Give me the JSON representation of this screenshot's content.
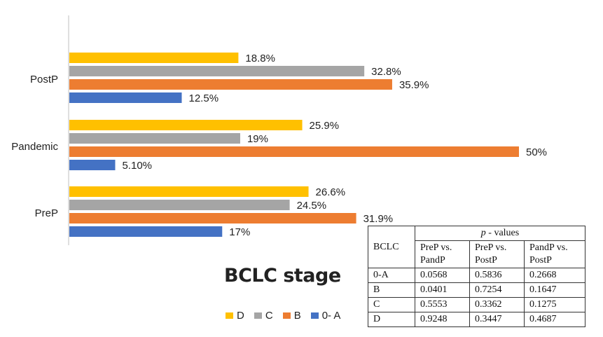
{
  "chart_data": {
    "type": "bar",
    "orientation": "horizontal",
    "title": "BCLC stage",
    "categories": [
      "PostP",
      "Pandemic",
      "PreP"
    ],
    "series": [
      {
        "name": "D",
        "color": "#FFC000",
        "values": [
          18.8,
          25.9,
          26.6
        ],
        "labels": [
          "18.8%",
          "25.9%",
          "26.6%"
        ]
      },
      {
        "name": "C",
        "color": "#A5A5A5",
        "values": [
          32.8,
          19,
          24.5
        ],
        "labels": [
          "32.8%",
          "19%",
          "24.5%"
        ]
      },
      {
        "name": "B",
        "color": "#ED7D31",
        "values": [
          35.9,
          50,
          31.9
        ],
        "labels": [
          "35.9%",
          "50%",
          "31.9%"
        ]
      },
      {
        "name": "0- A",
        "color": "#4472C4",
        "values": [
          12.5,
          5.1,
          17
        ],
        "labels": [
          "12.5%",
          "5.10%",
          "17%"
        ]
      }
    ],
    "xlim": [
      0,
      50
    ],
    "legend_position": "bottom"
  },
  "table": {
    "row_header": "BCLC",
    "group_header_p": "p",
    "group_header_rest": " - values",
    "columns": [
      [
        "PreP vs.",
        "PandP"
      ],
      [
        "PreP vs.",
        "PostP"
      ],
      [
        "PandP vs.",
        "PostP"
      ]
    ],
    "rows": [
      {
        "label": "0-A",
        "values": [
          "0.0568",
          "0.5836",
          "0.2668"
        ]
      },
      {
        "label": "B",
        "values": [
          "0.0401",
          "0.7254",
          "0.1647"
        ]
      },
      {
        "label": "C",
        "values": [
          "0.5553",
          "0.3362",
          "0.1275"
        ]
      },
      {
        "label": "D",
        "values": [
          "0.9248",
          "0.3447",
          "0.4687"
        ]
      }
    ]
  }
}
